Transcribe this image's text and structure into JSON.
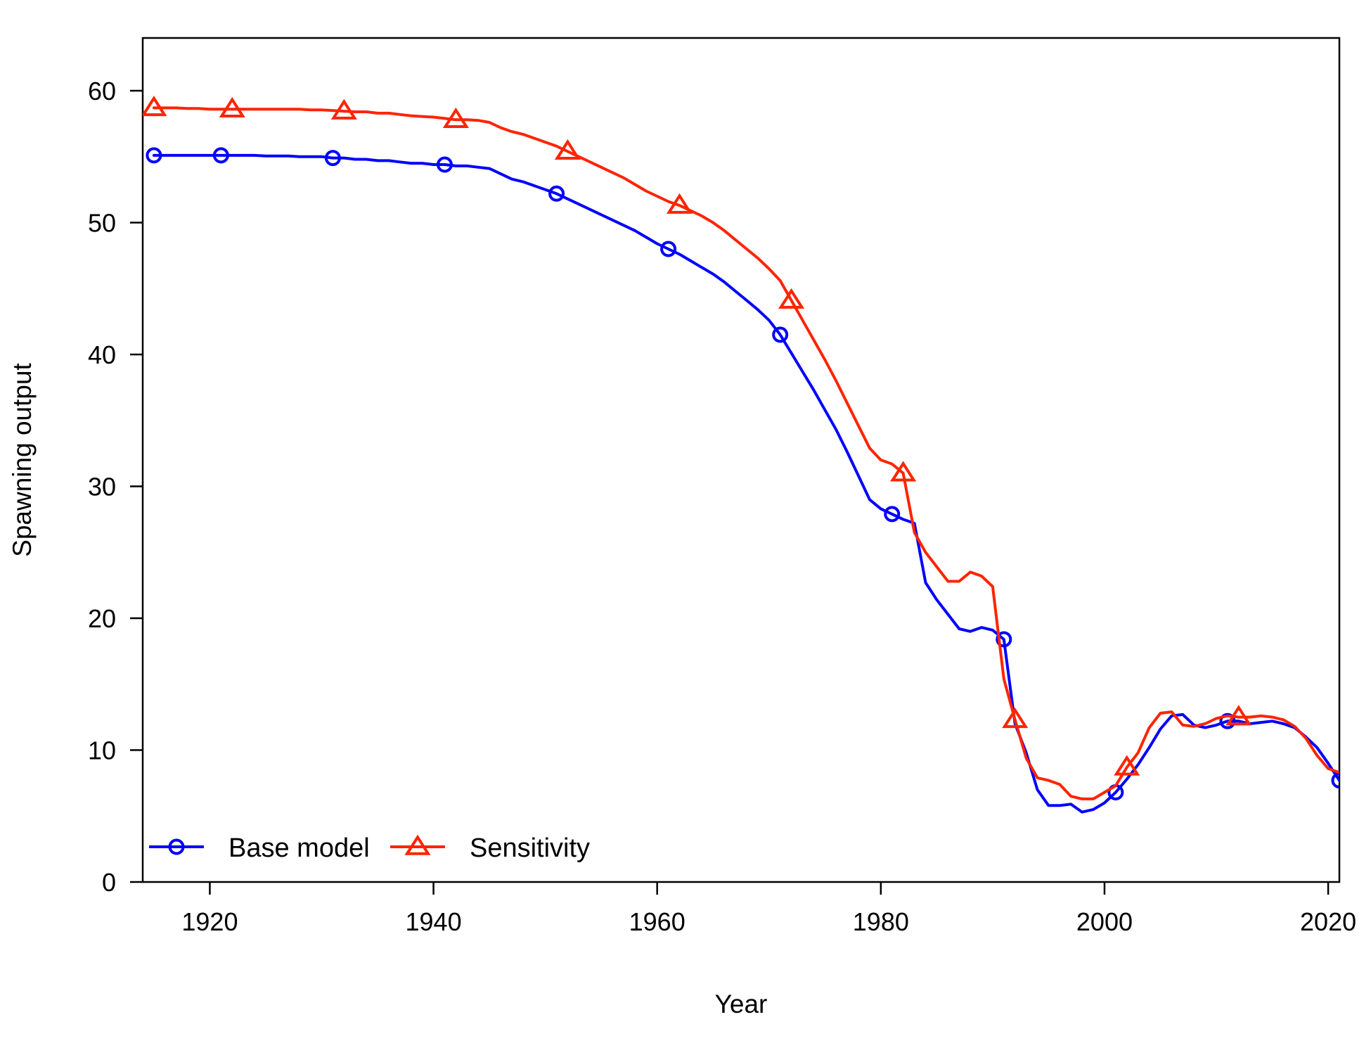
{
  "chart_data": {
    "type": "line",
    "title": "",
    "xlabel": "Year",
    "ylabel": "Spawning output",
    "xlim": [
      1914,
      2021
    ],
    "ylim": [
      0,
      64
    ],
    "x_ticks": [
      1920,
      1940,
      1960,
      1980,
      2000,
      2020
    ],
    "y_ticks": [
      0,
      10,
      20,
      30,
      40,
      50,
      60
    ],
    "x_tick_labels": [
      "1920",
      "1940",
      "1960",
      "1980",
      "2000",
      "2020"
    ],
    "y_tick_labels": [
      "0",
      "10",
      "20",
      "30",
      "40",
      "50",
      "60"
    ],
    "grid": false,
    "legend": {
      "position": "bottom-left",
      "horizontal": true
    },
    "series": [
      {
        "name": "Base model",
        "color": "#0000FF",
        "marker": "circle",
        "marker_years": [
          1915,
          1921,
          1931,
          1941,
          1951,
          1961,
          1971,
          1981,
          1991,
          2001,
          2011,
          2021
        ],
        "x": [
          1915,
          1916,
          1917,
          1918,
          1919,
          1920,
          1921,
          1922,
          1923,
          1924,
          1925,
          1926,
          1927,
          1928,
          1929,
          1930,
          1931,
          1932,
          1933,
          1934,
          1935,
          1936,
          1937,
          1938,
          1939,
          1940,
          1941,
          1942,
          1943,
          1944,
          1945,
          1946,
          1947,
          1948,
          1949,
          1950,
          1951,
          1952,
          1953,
          1954,
          1955,
          1956,
          1957,
          1958,
          1959,
          1960,
          1961,
          1962,
          1963,
          1964,
          1965,
          1966,
          1967,
          1968,
          1969,
          1970,
          1971,
          1972,
          1973,
          1974,
          1975,
          1976,
          1977,
          1978,
          1979,
          1980,
          1981,
          1982,
          1983,
          1984,
          1985,
          1986,
          1987,
          1988,
          1989,
          1990,
          1991,
          1992,
          1993,
          1994,
          1995,
          1996,
          1997,
          1998,
          1999,
          2000,
          2001,
          2002,
          2003,
          2004,
          2005,
          2006,
          2007,
          2008,
          2009,
          2010,
          2011,
          2012,
          2013,
          2014,
          2015,
          2016,
          2017,
          2018,
          2019,
          2020,
          2021
        ],
        "values": [
          55.1,
          55.1,
          55.1,
          55.1,
          55.1,
          55.1,
          55.1,
          55.1,
          55.1,
          55.1,
          55.05,
          55.05,
          55.05,
          55.0,
          55.0,
          55.0,
          54.9,
          54.9,
          54.8,
          54.8,
          54.7,
          54.7,
          54.6,
          54.5,
          54.5,
          54.4,
          54.4,
          54.3,
          54.3,
          54.2,
          54.1,
          53.7,
          53.3,
          53.1,
          52.8,
          52.5,
          52.2,
          51.8,
          51.4,
          51.0,
          50.6,
          50.2,
          49.8,
          49.4,
          48.9,
          48.4,
          48.0,
          47.6,
          47.1,
          46.6,
          46.1,
          45.5,
          44.8,
          44.1,
          43.4,
          42.6,
          41.5,
          40.1,
          38.7,
          37.3,
          35.8,
          34.3,
          32.6,
          30.8,
          29.0,
          28.3,
          27.9,
          27.5,
          27.2,
          22.7,
          21.4,
          20.3,
          19.2,
          19.0,
          19.3,
          19.1,
          18.4,
          12.0,
          9.8,
          7.0,
          5.8,
          5.8,
          5.9,
          5.3,
          5.5,
          6.0,
          6.8,
          7.8,
          8.9,
          10.2,
          11.6,
          12.6,
          12.7,
          11.9,
          11.7,
          11.9,
          12.2,
          12.2,
          12.0,
          12.1,
          12.2,
          12.0,
          11.7,
          11.0,
          10.2,
          9.0,
          7.7
        ]
      },
      {
        "name": "Sensitivity",
        "color": "#FF2400",
        "marker": "triangle",
        "marker_years": [
          1915,
          1922,
          1932,
          1942,
          1952,
          1962,
          1972,
          1982,
          1992,
          2002,
          2012
        ],
        "x": [
          1915,
          1916,
          1917,
          1918,
          1919,
          1920,
          1921,
          1922,
          1923,
          1924,
          1925,
          1926,
          1927,
          1928,
          1929,
          1930,
          1931,
          1932,
          1933,
          1934,
          1935,
          1936,
          1937,
          1938,
          1939,
          1940,
          1941,
          1942,
          1943,
          1944,
          1945,
          1946,
          1947,
          1948,
          1949,
          1950,
          1951,
          1952,
          1953,
          1954,
          1955,
          1956,
          1957,
          1958,
          1959,
          1960,
          1961,
          1962,
          1963,
          1964,
          1965,
          1966,
          1967,
          1968,
          1969,
          1970,
          1971,
          1972,
          1973,
          1974,
          1975,
          1976,
          1977,
          1978,
          1979,
          1980,
          1981,
          1982,
          1983,
          1984,
          1985,
          1986,
          1987,
          1988,
          1989,
          1990,
          1991,
          1992,
          1993,
          1994,
          1995,
          1996,
          1997,
          1998,
          1999,
          2000,
          2001,
          2002,
          2003,
          2004,
          2005,
          2006,
          2007,
          2008,
          2009,
          2010,
          2011,
          2012,
          2013,
          2014,
          2015,
          2016,
          2017,
          2018,
          2019,
          2020,
          2021
        ],
        "values": [
          58.7,
          58.7,
          58.7,
          58.65,
          58.65,
          58.6,
          58.6,
          58.6,
          58.6,
          58.6,
          58.6,
          58.6,
          58.6,
          58.6,
          58.55,
          58.55,
          58.5,
          58.45,
          58.4,
          58.4,
          58.3,
          58.3,
          58.2,
          58.1,
          58.05,
          58.0,
          57.9,
          57.8,
          57.8,
          57.75,
          57.6,
          57.2,
          56.9,
          56.7,
          56.4,
          56.1,
          55.8,
          55.4,
          55.0,
          54.6,
          54.2,
          53.8,
          53.4,
          52.9,
          52.4,
          52.0,
          51.6,
          51.3,
          50.9,
          50.5,
          50.0,
          49.4,
          48.7,
          48.0,
          47.3,
          46.5,
          45.6,
          44.1,
          42.6,
          41.1,
          39.6,
          38.0,
          36.3,
          34.6,
          32.9,
          32.0,
          31.7,
          31.0,
          26.5,
          25.0,
          23.9,
          22.8,
          22.8,
          23.5,
          23.2,
          22.4,
          15.4,
          12.3,
          9.4,
          7.9,
          7.7,
          7.4,
          6.5,
          6.3,
          6.3,
          6.8,
          7.3,
          8.7,
          9.8,
          11.7,
          12.8,
          12.9,
          11.9,
          11.8,
          12.0,
          12.4,
          12.6,
          12.5,
          12.5,
          12.6,
          12.5,
          12.3,
          11.8,
          10.9,
          9.6,
          8.6,
          8.3
        ]
      }
    ]
  }
}
